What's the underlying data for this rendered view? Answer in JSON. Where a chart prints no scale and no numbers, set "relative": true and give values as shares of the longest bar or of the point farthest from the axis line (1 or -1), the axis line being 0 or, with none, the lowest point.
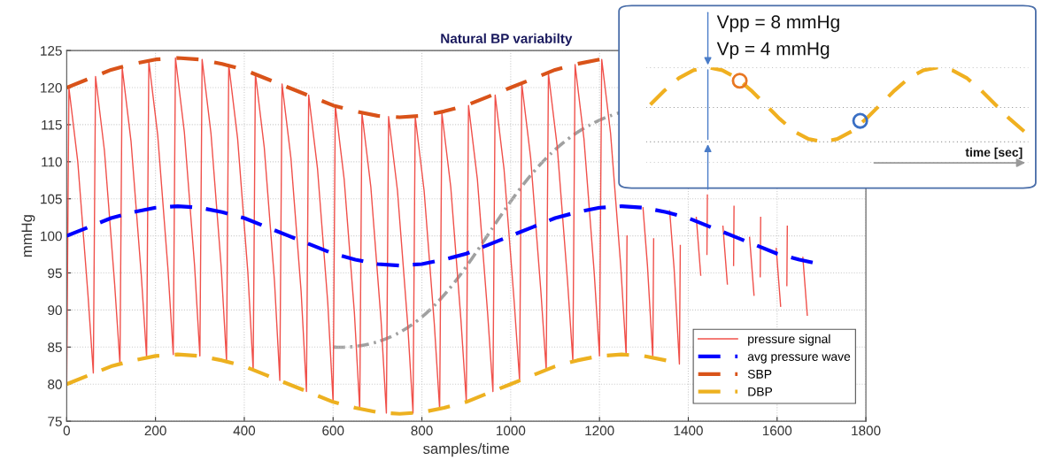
{
  "chart_data": [
    {
      "type": "line",
      "title": "Natural BP variabilty",
      "xlabel": "samples/time",
      "ylabel": "mmHg",
      "xlim": [
        0,
        1800
      ],
      "xticks": [
        0,
        200,
        400,
        600,
        800,
        1000,
        1200,
        1400,
        1600,
        1800
      ],
      "ylim": [
        75,
        125
      ],
      "yticks": [
        75,
        80,
        85,
        90,
        95,
        100,
        105,
        110,
        115,
        120,
        125
      ],
      "grid": true,
      "legend": "bottom right",
      "series": [
        {
          "name": "pressure signal",
          "color": "#f0504a",
          "line_style": "solid",
          "x": [
            0,
            5,
            25,
            48,
            60,
            65,
            85,
            108,
            120,
            125,
            145,
            168,
            180,
            185,
            205,
            228,
            240,
            245,
            265,
            288,
            300,
            305,
            325,
            348,
            360,
            365,
            385,
            408,
            420,
            425,
            445,
            468,
            480,
            485,
            505,
            528,
            540,
            545,
            565,
            588,
            600,
            605,
            625,
            648,
            660,
            665,
            685,
            708,
            720,
            725,
            745,
            768,
            780,
            785,
            805,
            828,
            840,
            845,
            865,
            888,
            900,
            905,
            925,
            948,
            960,
            965,
            985,
            1008,
            1020,
            1025,
            1045,
            1068,
            1080,
            1085,
            1105,
            1128,
            1140,
            1145,
            1165,
            1188,
            1200,
            1205,
            1225,
            1248,
            1260,
            1262,
            1265,
            1298,
            1308,
            1320,
            1322,
            1325,
            1358,
            1368,
            1380,
            1382,
            1385,
            1418,
            1428,
            1440,
            1442,
            1443,
            1445,
            1478,
            1488,
            1500,
            1502,
            1503,
            1505,
            1538,
            1548,
            1560,
            1562,
            1563,
            1565,
            1598,
            1608,
            1620,
            1622,
            1623,
            1625,
            1658,
            1668
          ],
          "values": [
            80,
            120,
            110,
            92,
            81.5,
            121.5,
            111.5,
            93.5,
            82.7,
            122.7,
            112.7,
            94.7,
            83.6,
            123.6,
            113.6,
            95.6,
            84,
            124,
            114,
            96,
            83.8,
            123.8,
            113.8,
            95.8,
            83.1,
            123.1,
            113.1,
            95.1,
            81.9,
            121.9,
            111.9,
            93.9,
            80.5,
            120.5,
            110.5,
            92.5,
            79,
            119,
            109,
            91,
            77.6,
            117.6,
            107.6,
            89.6,
            76.6,
            116.6,
            106.6,
            88.6,
            76.1,
            116.1,
            106.1,
            88.1,
            76.1,
            116.1,
            106.1,
            88.1,
            76.6,
            116.6,
            106.6,
            88.6,
            77.6,
            117.6,
            107.6,
            89.6,
            79,
            119,
            109,
            91,
            80.5,
            120.5,
            110.5,
            92.5,
            81.9,
            121.9,
            111.9,
            93.9,
            83.1,
            123.1,
            113.1,
            95.1,
            83.8,
            123.8,
            113.8,
            95.8,
            84,
            100,
            null,
            103.8,
            96,
            83.6,
            99.6,
            null,
            103.4,
            95.6,
            82.7,
            98.7,
            null,
            102.5,
            94.7,
            null,
            97.5,
            105.5,
            null,
            101.3,
            93.5,
            null,
            96,
            104,
            null,
            99.8,
            92,
            null,
            94.5,
            102.5,
            null,
            98.3,
            90.5,
            null,
            93.3,
            101.3,
            null,
            97.1,
            89.3
          ]
        },
        {
          "name": "avg pressure wave",
          "color": "#0000ff",
          "line_style": "dashed",
          "x": [
            0,
            50,
            100,
            150,
            200,
            250,
            300,
            350,
            400,
            450,
            500,
            550,
            600,
            650,
            700,
            750,
            800,
            850,
            900,
            950,
            1000,
            1050,
            1100,
            1150,
            1200,
            1250,
            1300,
            1350,
            1400,
            1450,
            1500,
            1550,
            1600,
            1650,
            1680
          ],
          "values": [
            100,
            101.2,
            102.4,
            103.2,
            103.8,
            104,
            103.8,
            103.2,
            102.4,
            101.2,
            100,
            98.8,
            97.6,
            96.8,
            96.2,
            96,
            96.2,
            96.8,
            97.6,
            98.8,
            100,
            101.2,
            102.4,
            103.2,
            103.8,
            104,
            103.8,
            103.2,
            102.4,
            101.2,
            100,
            98.8,
            97.6,
            96.8,
            96.4
          ]
        },
        {
          "name": "SBP",
          "color": "#d95319",
          "line_style": "dashed",
          "x": [
            0,
            50,
            100,
            150,
            200,
            250,
            300,
            350,
            400,
            450,
            500,
            550,
            600,
            650,
            700,
            750,
            800,
            850,
            900,
            950,
            1000,
            1050,
            1100,
            1150,
            1200
          ],
          "values": [
            120,
            121.2,
            122.4,
            123.2,
            123.8,
            124,
            123.8,
            123.2,
            122.4,
            121.2,
            120,
            118.8,
            117.6,
            116.8,
            116.2,
            116,
            116.2,
            116.8,
            117.6,
            118.8,
            120,
            121.2,
            122.4,
            123.2,
            123.8
          ]
        },
        {
          "name": "DBP",
          "color": "#edb120",
          "line_style": "dashed",
          "x": [
            0,
            50,
            100,
            150,
            200,
            250,
            300,
            350,
            400,
            450,
            500,
            550,
            600,
            650,
            700,
            750,
            800,
            850,
            900,
            950,
            1000,
            1050,
            1100,
            1150,
            1200,
            1250,
            1300,
            1350
          ],
          "values": [
            80,
            81.2,
            82.4,
            83.2,
            83.8,
            84,
            83.8,
            83.2,
            82.4,
            81.2,
            80,
            78.8,
            77.6,
            76.8,
            76.2,
            76,
            76.2,
            76.8,
            77.6,
            78.8,
            80,
            81.2,
            82.4,
            83.2,
            83.8,
            84,
            83.8,
            83.2
          ]
        }
      ]
    },
    {
      "type": "line",
      "relative": true,
      "xlabel": "time [sec]",
      "categories": [
        null,
        null,
        null,
        null,
        null,
        null,
        null,
        null,
        null,
        null,
        null,
        null,
        null,
        null,
        null,
        null,
        null,
        null,
        null,
        null,
        null,
        null,
        null,
        null,
        null,
        null,
        null
      ],
      "annotations": [
        "Vpp = 8 mmHg",
        "Vp = 4 mmHg"
      ],
      "ref_lines": [
        {
          "axis": "y",
          "value": 1,
          "color": "#999999",
          "line_style": "dotted"
        },
        {
          "axis": "y",
          "value": 0.58,
          "color": "#999999",
          "line_style": "dotted"
        },
        {
          "axis": "y",
          "value": 0.22,
          "color": "#999999",
          "line_style": "dotted"
        },
        {
          "axis": "y",
          "value": 0,
          "color": "#999999",
          "line_style": "dotted"
        }
      ],
      "series": [
        {
          "color": "#f0b020",
          "line_style": "dashed",
          "values": [
            0.61,
            0.76,
            0.89,
            0.97,
            1,
            0.97,
            0.89,
            0.76,
            0.61,
            0.46,
            0.33,
            0.25,
            0.22,
            0.25,
            0.33,
            0.46,
            0.61,
            0.76,
            0.89,
            0.97,
            1,
            0.97,
            0.89,
            0.76,
            0.61,
            0.46,
            0.33
          ]
        }
      ]
    }
  ]
}
